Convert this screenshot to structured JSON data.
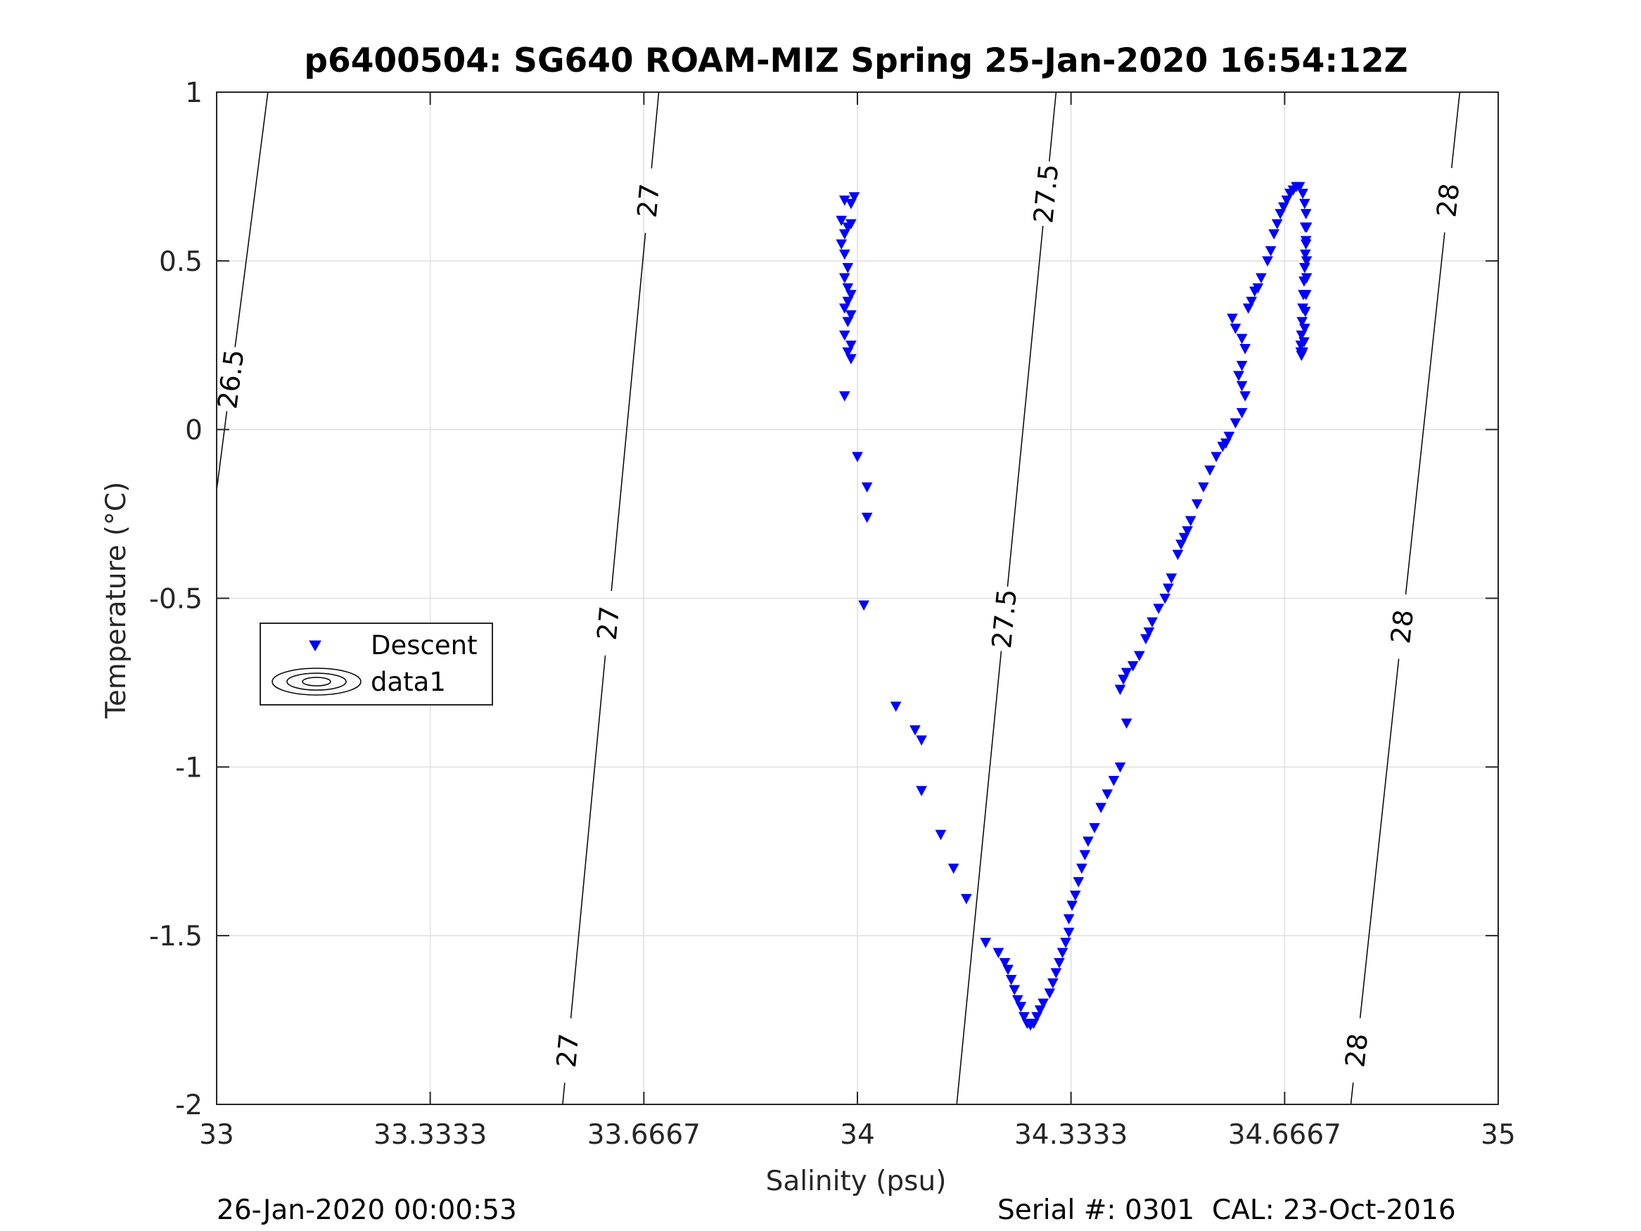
{
  "chart_data": {
    "type": "scatter",
    "title": "p6400504: SG640 ROAM-MIZ Spring 25-Jan-2020 16:54:12Z",
    "xlabel": "Salinity (psu)",
    "ylabel": "Temperature (°C)",
    "xlim": [
      33,
      35
    ],
    "ylim": [
      -2,
      1
    ],
    "grid": true,
    "legend_position": "left",
    "xticks": [
      33,
      33.3333,
      33.6667,
      34,
      34.3333,
      34.6667,
      35
    ],
    "xtick_labels": [
      "33",
      "33.3333",
      "33.6667",
      "34",
      "34.3333",
      "34.6667",
      "35"
    ],
    "yticks": [
      -2,
      -1.5,
      -1,
      -0.5,
      0,
      0.5,
      1
    ],
    "ytick_labels": [
      "-2",
      "-1.5",
      "-1",
      "-0.5",
      "0",
      "0.5",
      "1"
    ],
    "series": [
      {
        "name": "Descent",
        "color": "#0000ff",
        "marker": "triangle-down",
        "points": [
          [
            33.98,
            0.68
          ],
          [
            33.99,
            0.67
          ],
          [
            33.995,
            0.69
          ],
          [
            33.975,
            0.62
          ],
          [
            33.985,
            0.6
          ],
          [
            33.99,
            0.61
          ],
          [
            33.98,
            0.58
          ],
          [
            33.975,
            0.55
          ],
          [
            33.98,
            0.52
          ],
          [
            33.985,
            0.48
          ],
          [
            33.98,
            0.45
          ],
          [
            33.985,
            0.42
          ],
          [
            33.99,
            0.4
          ],
          [
            33.985,
            0.38
          ],
          [
            33.98,
            0.36
          ],
          [
            33.99,
            0.34
          ],
          [
            33.985,
            0.32
          ],
          [
            33.98,
            0.28
          ],
          [
            33.99,
            0.25
          ],
          [
            33.985,
            0.23
          ],
          [
            33.99,
            0.21
          ],
          [
            33.98,
            0.1
          ],
          [
            34.0,
            -0.08
          ],
          [
            34.015,
            -0.17
          ],
          [
            34.015,
            -0.26
          ],
          [
            34.01,
            -0.52
          ],
          [
            34.06,
            -0.82
          ],
          [
            34.09,
            -0.89
          ],
          [
            34.1,
            -0.92
          ],
          [
            34.1,
            -1.07
          ],
          [
            34.13,
            -1.2
          ],
          [
            34.15,
            -1.3
          ],
          [
            34.17,
            -1.39
          ],
          [
            34.2,
            -1.52
          ],
          [
            34.22,
            -1.55
          ],
          [
            34.23,
            -1.58
          ],
          [
            34.235,
            -1.6
          ],
          [
            34.24,
            -1.63
          ],
          [
            34.245,
            -1.66
          ],
          [
            34.25,
            -1.69
          ],
          [
            34.255,
            -1.71
          ],
          [
            34.26,
            -1.74
          ],
          [
            34.265,
            -1.76
          ],
          [
            34.27,
            -1.765
          ],
          [
            34.275,
            -1.76
          ],
          [
            34.28,
            -1.74
          ],
          [
            34.285,
            -1.72
          ],
          [
            34.29,
            -1.7
          ],
          [
            34.3,
            -1.67
          ],
          [
            34.305,
            -1.64
          ],
          [
            34.31,
            -1.61
          ],
          [
            34.315,
            -1.58
          ],
          [
            34.32,
            -1.55
          ],
          [
            34.325,
            -1.52
          ],
          [
            34.33,
            -1.49
          ],
          [
            34.33,
            -1.45
          ],
          [
            34.335,
            -1.41
          ],
          [
            34.34,
            -1.38
          ],
          [
            34.345,
            -1.34
          ],
          [
            34.35,
            -1.3
          ],
          [
            34.355,
            -1.26
          ],
          [
            34.36,
            -1.22
          ],
          [
            34.37,
            -1.18
          ],
          [
            34.38,
            -1.12
          ],
          [
            34.39,
            -1.08
          ],
          [
            34.4,
            -1.04
          ],
          [
            34.41,
            -1.0
          ],
          [
            34.42,
            -0.87
          ],
          [
            34.41,
            -0.77
          ],
          [
            34.415,
            -0.74
          ],
          [
            34.42,
            -0.72
          ],
          [
            34.43,
            -0.7
          ],
          [
            34.44,
            -0.67
          ],
          [
            34.45,
            -0.62
          ],
          [
            34.455,
            -0.6
          ],
          [
            34.46,
            -0.57
          ],
          [
            34.47,
            -0.53
          ],
          [
            34.48,
            -0.5
          ],
          [
            34.485,
            -0.47
          ],
          [
            34.49,
            -0.44
          ],
          [
            34.5,
            -0.37
          ],
          [
            34.505,
            -0.34
          ],
          [
            34.51,
            -0.32
          ],
          [
            34.515,
            -0.3
          ],
          [
            34.52,
            -0.27
          ],
          [
            34.53,
            -0.22
          ],
          [
            34.54,
            -0.17
          ],
          [
            34.55,
            -0.12
          ],
          [
            34.56,
            -0.08
          ],
          [
            34.57,
            -0.05
          ],
          [
            34.575,
            -0.04
          ],
          [
            34.58,
            -0.02
          ],
          [
            34.59,
            0.02
          ],
          [
            34.6,
            0.05
          ],
          [
            34.605,
            0.1
          ],
          [
            34.6,
            0.13
          ],
          [
            34.595,
            0.16
          ],
          [
            34.6,
            0.19
          ],
          [
            34.605,
            0.24
          ],
          [
            34.6,
            0.27
          ],
          [
            34.59,
            0.3
          ],
          [
            34.585,
            0.33
          ],
          [
            34.61,
            0.36
          ],
          [
            34.615,
            0.38
          ],
          [
            34.62,
            0.41
          ],
          [
            34.625,
            0.42
          ],
          [
            34.63,
            0.45
          ],
          [
            34.64,
            0.5
          ],
          [
            34.645,
            0.53
          ],
          [
            34.65,
            0.58
          ],
          [
            34.655,
            0.61
          ],
          [
            34.66,
            0.64
          ],
          [
            34.665,
            0.66
          ],
          [
            34.67,
            0.68
          ],
          [
            34.675,
            0.7
          ],
          [
            34.68,
            0.71
          ],
          [
            34.685,
            0.72
          ],
          [
            34.69,
            0.72
          ],
          [
            34.695,
            0.7
          ],
          [
            34.698,
            0.67
          ],
          [
            34.7,
            0.64
          ],
          [
            34.701,
            0.6
          ],
          [
            34.7,
            0.56
          ],
          [
            34.699,
            0.52
          ],
          [
            34.698,
            0.48
          ],
          [
            34.697,
            0.44
          ],
          [
            34.696,
            0.4
          ],
          [
            34.695,
            0.36
          ],
          [
            34.694,
            0.32
          ],
          [
            34.693,
            0.28
          ],
          [
            34.692,
            0.25
          ],
          [
            34.692,
            0.23
          ],
          [
            34.693,
            0.22
          ],
          [
            34.695,
            0.23
          ],
          [
            34.697,
            0.26
          ],
          [
            34.698,
            0.3
          ],
          [
            34.699,
            0.35
          ],
          [
            34.7,
            0.4
          ],
          [
            34.701,
            0.45
          ],
          [
            34.701,
            0.5
          ],
          [
            34.7,
            0.55
          ],
          [
            34.699,
            0.6
          ]
        ]
      },
      {
        "name": "data1",
        "color": "#000000",
        "marker": "contour"
      }
    ],
    "contours": [
      {
        "label": "26.5",
        "points": [
          [
            33.0,
            -0.18
          ],
          [
            33.08,
            1.0
          ]
        ],
        "label_positions": [
          [
            33.02,
            0.15
          ]
        ]
      },
      {
        "label": "27",
        "points": [
          [
            33.54,
            -2.0
          ],
          [
            33.69,
            1.0
          ]
        ],
        "label_positions": [
          [
            33.665,
            0.68
          ],
          [
            33.59,
            -0.57
          ],
          [
            33.545,
            -1.84
          ]
        ]
      },
      {
        "label": "27.5",
        "points": [
          [
            34.155,
            -2.0
          ],
          [
            34.31,
            1.0
          ]
        ],
        "label_positions": [
          [
            34.29,
            0.7
          ],
          [
            34.225,
            -0.56
          ]
        ]
      },
      {
        "label": "28",
        "points": [
          [
            34.77,
            -2.0
          ],
          [
            34.94,
            1.0
          ]
        ],
        "label_positions": [
          [
            34.92,
            0.68
          ],
          [
            34.83,
            -0.58
          ],
          [
            34.78,
            -1.84
          ]
        ]
      }
    ]
  },
  "footer": {
    "left": "26-Jan-2020 00:00:53",
    "right": "Serial #: 0301  CAL: 23-Oct-2016"
  }
}
